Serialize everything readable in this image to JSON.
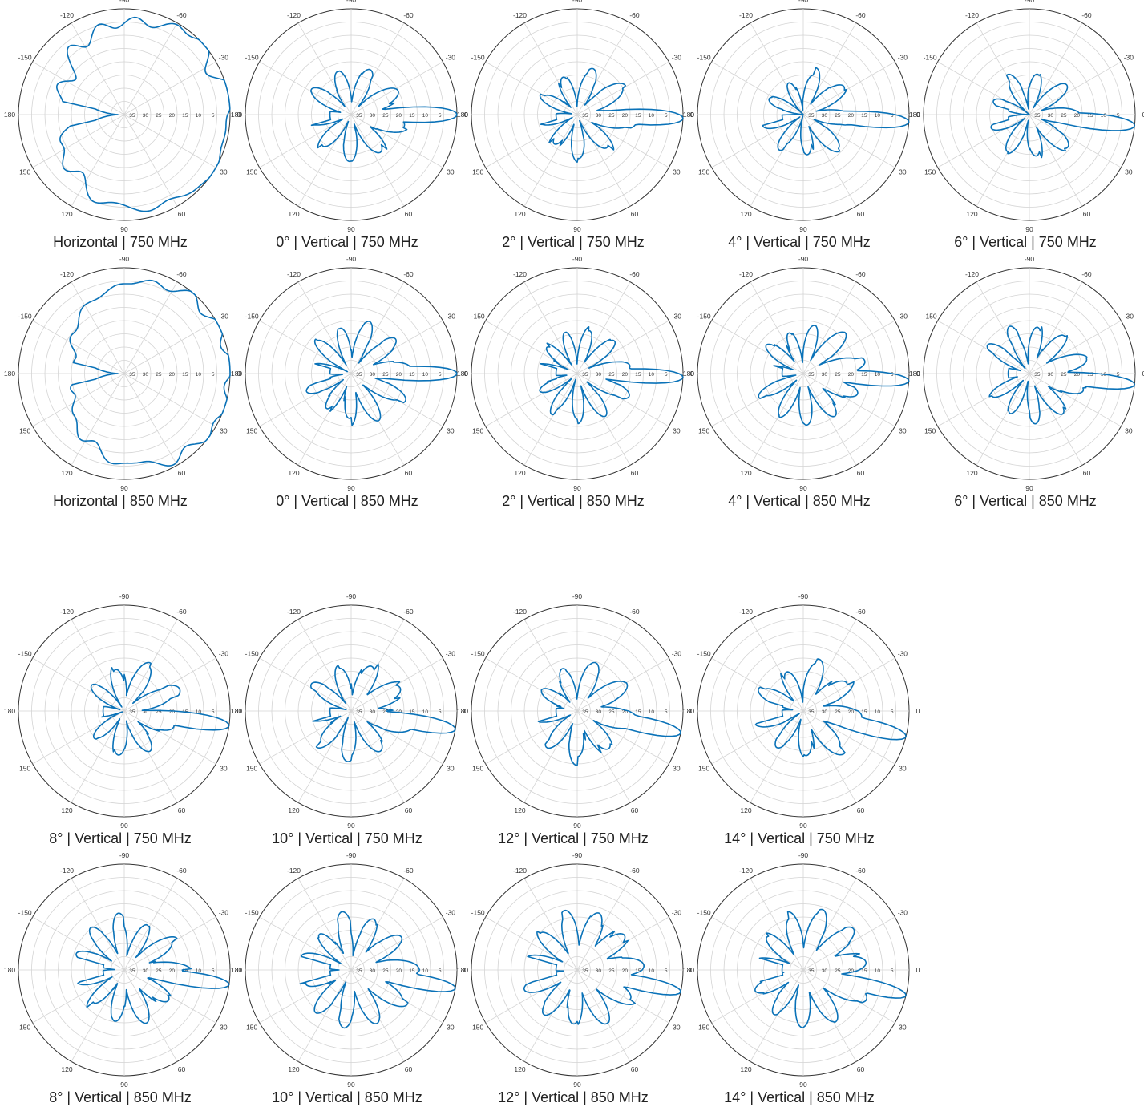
{
  "style": {
    "line_color": "#0a72b8",
    "grid_color": "#d4d4d4",
    "outer_ring_color": "#333333",
    "label_color": "#333333"
  },
  "axes": {
    "angle_labels": [
      "0",
      "-30",
      "-60",
      "-90",
      "-120",
      "-150",
      "180",
      "150",
      "120",
      "90",
      "60",
      "30"
    ],
    "angle_values": [
      0,
      -30,
      -60,
      -90,
      -120,
      -150,
      180,
      150,
      120,
      90,
      60,
      30
    ],
    "radial_labels": [
      "5",
      "10",
      "15",
      "20",
      "25",
      "30",
      "35"
    ],
    "radial_values": [
      5,
      10,
      15,
      20,
      25,
      30,
      35
    ],
    "r_range_db": [
      0,
      40
    ],
    "direction": "clockwise from right (0° at right, 90° at bottom)",
    "grid": true
  },
  "chart_data": [
    {
      "type": "polar",
      "title": "Horizontal  |  750 MHz",
      "kind": "horizontal",
      "dir": 0,
      "bw": 140,
      "peak": 0,
      "floor": 11,
      "ripple": 1.2,
      "seed": 1
    },
    {
      "type": "polar",
      "title": "0°  |  Vertical  |  750 MHz",
      "kind": "vertical",
      "dir": 0,
      "beam": 6,
      "lobes": 9,
      "lobeLevel": 16,
      "seed": 2
    },
    {
      "type": "polar",
      "title": "2°  |  Vertical  |  750 MHz",
      "kind": "vertical",
      "dir": 2,
      "beam": 6,
      "lobes": 9,
      "lobeLevel": 17,
      "seed": 3
    },
    {
      "type": "polar",
      "title": "4°  |  Vertical  |  750 MHz",
      "kind": "vertical",
      "dir": 4,
      "beam": 6,
      "lobes": 9,
      "lobeLevel": 18,
      "seed": 4
    },
    {
      "type": "polar",
      "title": "6°  |  Vertical  |  750 MHz",
      "kind": "vertical",
      "dir": 6,
      "beam": 6,
      "lobes": 9,
      "lobeLevel": 17,
      "seed": 5
    },
    {
      "type": "polar",
      "title": "Horizontal  |  850 MHz",
      "kind": "horizontal",
      "dir": 0,
      "bw": 125,
      "peak": 0,
      "floor": 14,
      "ripple": 0.8,
      "seed": 6
    },
    {
      "type": "polar",
      "title": "0°  |  Vertical  |  850 MHz",
      "kind": "vertical",
      "dir": 0,
      "beam": 5.5,
      "lobes": 11,
      "lobeLevel": 15,
      "seed": 7
    },
    {
      "type": "polar",
      "title": "2°  |  Vertical  |  850 MHz",
      "kind": "vertical",
      "dir": 2,
      "beam": 5.5,
      "lobes": 11,
      "lobeLevel": 16,
      "seed": 8
    },
    {
      "type": "polar",
      "title": "4°  |  Vertical  |  850 MHz",
      "kind": "vertical",
      "dir": 4,
      "beam": 5.5,
      "lobes": 11,
      "lobeLevel": 15,
      "seed": 9
    },
    {
      "type": "polar",
      "title": "6°  |  Vertical  |  850 MHz",
      "kind": "vertical",
      "dir": 6,
      "beam": 5.5,
      "lobes": 11,
      "lobeLevel": 15,
      "seed": 10
    },
    {
      "type": "polar",
      "title": "8°  |  Vertical  |  750 MHz",
      "kind": "vertical",
      "dir": 8,
      "beam": 6,
      "lobes": 9,
      "lobeLevel": 16,
      "seed": 11
    },
    {
      "type": "polar",
      "title": "10°  |  Vertical  |  750 MHz",
      "kind": "vertical",
      "dir": 10,
      "beam": 6,
      "lobes": 9,
      "lobeLevel": 15,
      "seed": 12
    },
    {
      "type": "polar",
      "title": "12°  |  Vertical  |  750 MHz",
      "kind": "vertical",
      "dir": 12,
      "beam": 6,
      "lobes": 9,
      "lobeLevel": 15,
      "seed": 13
    },
    {
      "type": "polar",
      "title": "14°  |  Vertical  |  750 MHz",
      "kind": "vertical",
      "dir": 14,
      "beam": 6,
      "lobes": 9,
      "lobeLevel": 15,
      "seed": 14
    },
    {
      "type": "polar",
      "title": "8°  |  Vertical  |  850 MHz",
      "kind": "vertical",
      "dir": 8,
      "beam": 5.5,
      "lobes": 11,
      "lobeLevel": 14,
      "seed": 15
    },
    {
      "type": "polar",
      "title": "10°  |  Vertical  |  850 MHz",
      "kind": "vertical",
      "dir": 10,
      "beam": 5.5,
      "lobes": 11,
      "lobeLevel": 13,
      "seed": 16
    },
    {
      "type": "polar",
      "title": "12°  |  Vertical  |  850 MHz",
      "kind": "vertical",
      "dir": 12,
      "beam": 5.5,
      "lobes": 11,
      "lobeLevel": 12,
      "seed": 17
    },
    {
      "type": "polar",
      "title": "14°  |  Vertical  |  850 MHz",
      "kind": "vertical",
      "dir": 14,
      "beam": 5.5,
      "lobes": 11,
      "lobeLevel": 12,
      "seed": 18
    }
  ]
}
